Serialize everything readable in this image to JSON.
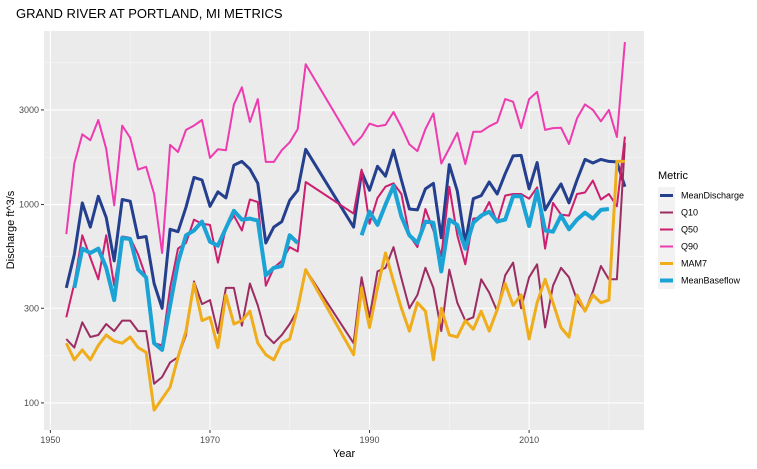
{
  "chart_data": {
    "type": "line",
    "title": "GRAND RIVER AT PORTLAND, MI  METRICS",
    "xlabel": "Year",
    "ylabel": "Discharge ft^3/s",
    "y_scale": "log",
    "xlim": [
      1949.2,
      2024.4
    ],
    "ylim": [
      73,
      7500
    ],
    "xticks": [
      1950,
      1970,
      1990,
      2010
    ],
    "xtick_labels": [
      "1950",
      "1970",
      "1990",
      "2010"
    ],
    "yticks": [
      100,
      300,
      1000,
      3000
    ],
    "ytick_labels": [
      "100",
      "300",
      "1000",
      "3000"
    ],
    "grid": true,
    "legend_title": "Metric",
    "legend_position": "right",
    "series": [
      {
        "name": "MeanDischarge",
        "color": "#253f8f",
        "width": 3,
        "x": [
          1952,
          1953,
          1954,
          1955,
          1956,
          1957,
          1958,
          1959,
          1960,
          1961,
          1962,
          1963,
          1964,
          1965,
          1966,
          1967,
          1968,
          1969,
          1970,
          1971,
          1972,
          1973,
          1974,
          1975,
          1976,
          1977,
          1978,
          1979,
          1980,
          1981,
          1982,
          1988,
          1989,
          1990,
          1991,
          1992,
          1993,
          1994,
          1995,
          1996,
          1997,
          1998,
          1999,
          2000,
          2001,
          2002,
          2003,
          2004,
          2005,
          2006,
          2007,
          2008,
          2009,
          2010,
          2011,
          2012,
          2013,
          2014,
          2015,
          2016,
          2017,
          2018,
          2019,
          2020,
          2021,
          2022
        ],
        "values": [
          380,
          560,
          1020,
          770,
          1100,
          860,
          520,
          1060,
          1040,
          680,
          690,
          400,
          300,
          750,
          730,
          970,
          1370,
          1330,
          980,
          1160,
          1080,
          1580,
          1650,
          1510,
          1280,
          640,
          770,
          820,
          1050,
          1180,
          1900,
          770,
          1460,
          1180,
          1560,
          1390,
          1880,
          1330,
          950,
          940,
          1200,
          1280,
          680,
          1590,
          1170,
          640,
          1070,
          1110,
          1300,
          1130,
          1430,
          1760,
          1770,
          1200,
          1630,
          940,
          1100,
          1270,
          1020,
          1330,
          1690,
          1620,
          1690,
          1650,
          1640,
          1230
        ]
      },
      {
        "name": "Q10",
        "color": "#9b2d62",
        "width": 2,
        "x": [
          1952,
          1953,
          1954,
          1955,
          1956,
          1957,
          1958,
          1959,
          1960,
          1961,
          1962,
          1963,
          1964,
          1965,
          1966,
          1967,
          1968,
          1969,
          1970,
          1971,
          1972,
          1973,
          1974,
          1975,
          1976,
          1977,
          1978,
          1979,
          1980,
          1981,
          1982,
          1988,
          1989,
          1990,
          1991,
          1992,
          1993,
          1994,
          1995,
          1996,
          1997,
          1998,
          1999,
          2000,
          2001,
          2002,
          2003,
          2004,
          2005,
          2006,
          2007,
          2008,
          2009,
          2010,
          2011,
          2012,
          2013,
          2014,
          2015,
          2016,
          2017,
          2018,
          2019,
          2020,
          2021,
          2022
        ],
        "values": [
          210,
          190,
          255,
          215,
          220,
          250,
          230,
          260,
          260,
          230,
          230,
          125,
          135,
          160,
          170,
          220,
          410,
          315,
          330,
          225,
          380,
          380,
          245,
          400,
          310,
          220,
          200,
          220,
          250,
          295,
          470,
          200,
          430,
          270,
          460,
          480,
          610,
          425,
          300,
          350,
          480,
          380,
          230,
          470,
          320,
          260,
          270,
          420,
          360,
          290,
          440,
          510,
          300,
          430,
          500,
          240,
          390,
          480,
          430,
          330,
          290,
          365,
          490,
          420,
          420,
          2050
        ]
      },
      {
        "name": "Q50",
        "color": "#cc1f6f",
        "width": 2,
        "x": [
          1952,
          1953,
          1954,
          1955,
          1956,
          1957,
          1958,
          1959,
          1960,
          1961,
          1962,
          1963,
          1964,
          1965,
          1966,
          1967,
          1968,
          1969,
          1970,
          1971,
          1972,
          1973,
          1974,
          1975,
          1976,
          1977,
          1978,
          1979,
          1980,
          1981,
          1982,
          1988,
          1989,
          1990,
          1991,
          1992,
          1993,
          1994,
          1995,
          1996,
          1997,
          1998,
          1999,
          2000,
          2001,
          2002,
          2003,
          2004,
          2005,
          2006,
          2007,
          2008,
          2009,
          2010,
          2011,
          2012,
          2013,
          2014,
          2015,
          2016,
          2017,
          2018,
          2019,
          2020,
          2021,
          2022
        ],
        "values": [
          270,
          400,
          700,
          540,
          420,
          700,
          390,
          690,
          680,
          560,
          430,
          200,
          195,
          380,
          600,
          640,
          840,
          800,
          790,
          510,
          760,
          880,
          740,
          1060,
          1030,
          390,
          480,
          520,
          610,
          580,
          1300,
          900,
          1500,
          800,
          1080,
          1230,
          1280,
          1130,
          700,
          610,
          950,
          740,
          550,
          1230,
          700,
          500,
          850,
          860,
          1030,
          810,
          1110,
          1130,
          1130,
          1070,
          1220,
          600,
          1020,
          890,
          880,
          1130,
          1150,
          1320,
          1060,
          1130,
          980,
          2200
        ]
      },
      {
        "name": "Q90",
        "color": "#ee3bb0",
        "width": 2,
        "x": [
          1952,
          1953,
          1954,
          1955,
          1956,
          1957,
          1958,
          1959,
          1960,
          1961,
          1962,
          1963,
          1964,
          1965,
          1966,
          1967,
          1968,
          1969,
          1970,
          1971,
          1972,
          1973,
          1974,
          1975,
          1976,
          1977,
          1978,
          1979,
          1980,
          1981,
          1982,
          1988,
          1989,
          1990,
          1991,
          1992,
          1993,
          1994,
          1995,
          1996,
          1997,
          1998,
          1999,
          2000,
          2001,
          2002,
          2003,
          2004,
          2005,
          2006,
          2007,
          2008,
          2009,
          2010,
          2011,
          2012,
          2013,
          2014,
          2015,
          2016,
          2017,
          2018,
          2019,
          2020,
          2021,
          2022
        ],
        "values": [
          710,
          1610,
          2260,
          2110,
          2670,
          1910,
          990,
          2500,
          2170,
          1500,
          1550,
          1130,
          570,
          2000,
          1840,
          2380,
          2500,
          2670,
          1720,
          1900,
          1880,
          3200,
          3900,
          2610,
          3400,
          1640,
          1640,
          1880,
          2060,
          2400,
          5100,
          2000,
          2200,
          2560,
          2480,
          2520,
          2930,
          2460,
          2010,
          1860,
          2400,
          2880,
          1610,
          1920,
          2300,
          1600,
          2330,
          2330,
          2480,
          2600,
          3400,
          3300,
          2430,
          3400,
          3700,
          2380,
          2430,
          2440,
          2020,
          2720,
          3200,
          3000,
          2630,
          3000,
          2190,
          6600
        ]
      },
      {
        "name": "MAM7",
        "color": "#efad1b",
        "width": 3,
        "x": [
          1952,
          1953,
          1954,
          1955,
          1956,
          1957,
          1958,
          1959,
          1960,
          1961,
          1962,
          1963,
          1964,
          1965,
          1966,
          1967,
          1968,
          1969,
          1970,
          1971,
          1972,
          1973,
          1974,
          1975,
          1976,
          1977,
          1978,
          1979,
          1980,
          1981,
          1982,
          1988,
          1989,
          1990,
          1991,
          1992,
          1993,
          1994,
          1995,
          1996,
          1997,
          1998,
          1999,
          2000,
          2001,
          2002,
          2003,
          2004,
          2005,
          2006,
          2007,
          2008,
          2009,
          2010,
          2011,
          2012,
          2013,
          2014,
          2015,
          2016,
          2017,
          2018,
          2019,
          2020,
          2021,
          2022
        ],
        "values": [
          200,
          165,
          185,
          165,
          195,
          220,
          205,
          200,
          215,
          190,
          180,
          92,
          105,
          120,
          170,
          230,
          400,
          260,
          270,
          190,
          350,
          250,
          260,
          290,
          200,
          175,
          165,
          200,
          210,
          300,
          470,
          175,
          380,
          240,
          380,
          570,
          410,
          300,
          230,
          320,
          290,
          165,
          300,
          220,
          215,
          260,
          235,
          290,
          230,
          295,
          400,
          310,
          350,
          210,
          320,
          420,
          320,
          240,
          215,
          350,
          290,
          350,
          320,
          330,
          1650,
          1650
        ]
      },
      {
        "name": "MeanBaseflow",
        "color": "#1ba3d5",
        "width": 4,
        "x": [
          1952,
          1953,
          1954,
          1955,
          1956,
          1957,
          1958,
          1959,
          1960,
          1961,
          1962,
          1963,
          1964,
          1965,
          1966,
          1967,
          1968,
          1969,
          1970,
          1971,
          1972,
          1973,
          1974,
          1975,
          1976,
          1977,
          1978,
          1979,
          1980,
          1981,
          1982,
          1988,
          1989,
          1990,
          1991,
          1992,
          1993,
          1994,
          1995,
          1996,
          1997,
          1998,
          1999,
          2000,
          2001,
          2002,
          2003,
          2004,
          2005,
          2006,
          2007,
          2008,
          2009,
          2010,
          2011,
          2012,
          2013,
          2014,
          2015,
          2016,
          2017,
          2018,
          2019,
          2020,
          2021
        ],
        "values": [
          null,
          380,
          600,
          570,
          600,
          480,
          330,
          680,
          670,
          470,
          430,
          200,
          185,
          310,
          510,
          700,
          740,
          820,
          650,
          620,
          760,
          930,
          840,
          850,
          830,
          440,
          480,
          490,
          700,
          640,
          null,
          null,
          700,
          920,
          790,
          1000,
          1240,
          870,
          700,
          640,
          820,
          810,
          460,
          840,
          790,
          600,
          810,
          880,
          920,
          820,
          840,
          1100,
          1100,
          780,
          1170,
          740,
          730,
          880,
          750,
          840,
          910,
          850,
          940,
          950,
          null
        ]
      }
    ]
  }
}
